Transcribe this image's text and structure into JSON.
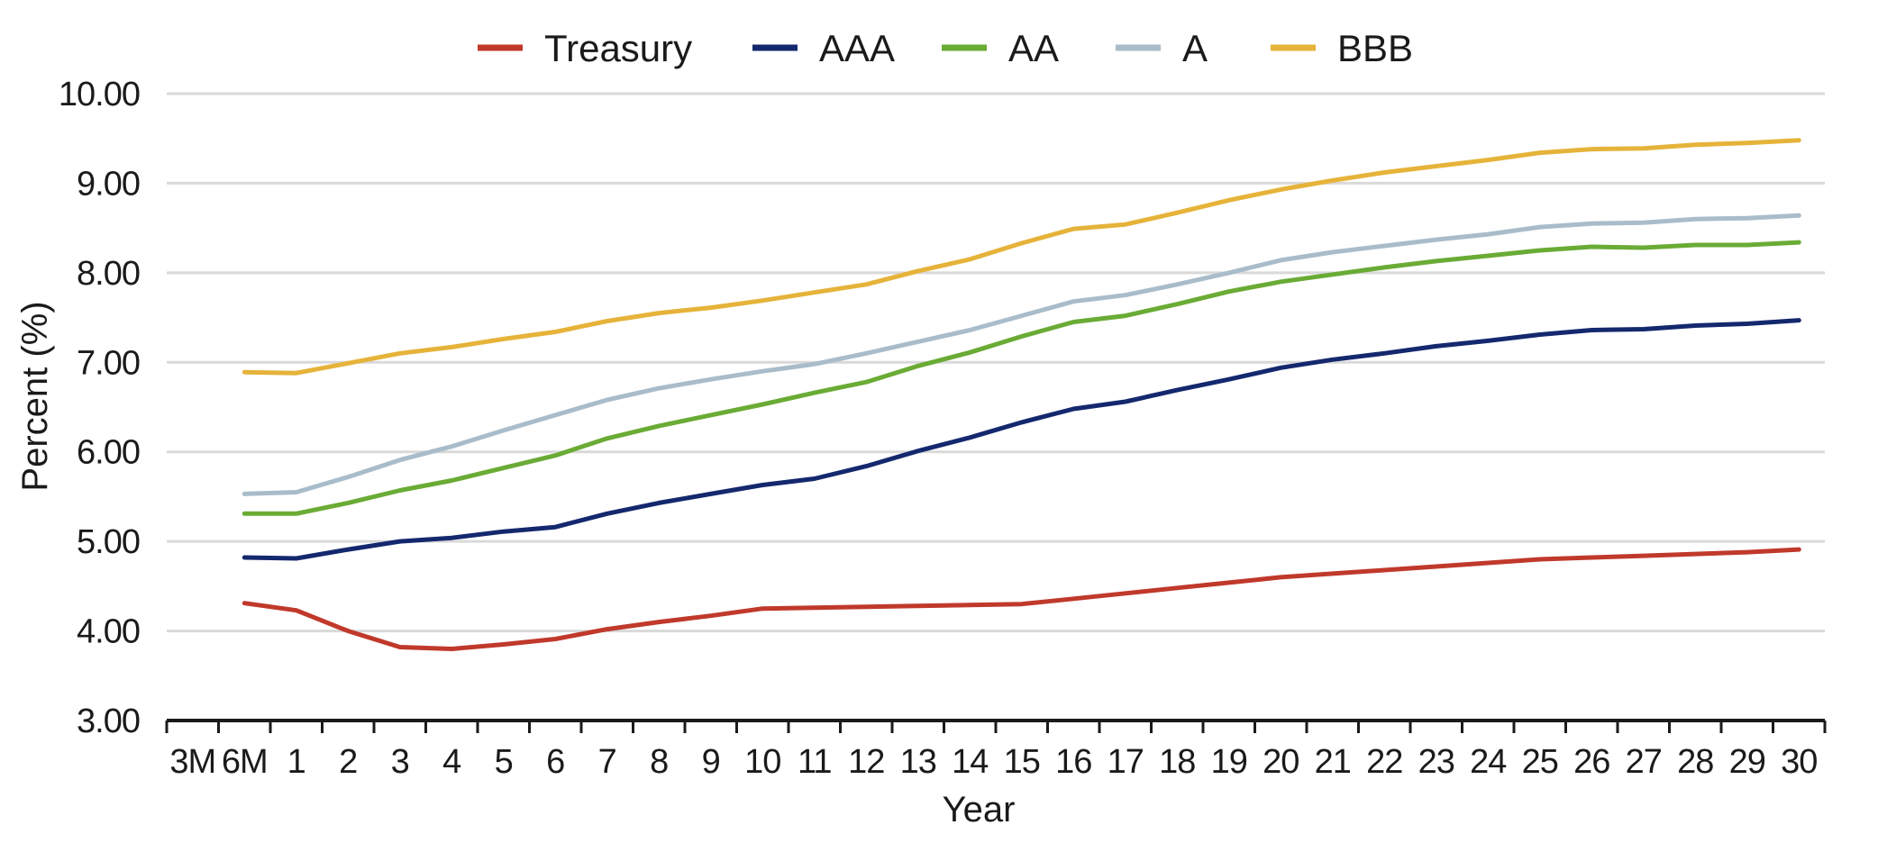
{
  "chart_data": {
    "type": "line",
    "title": "",
    "xlabel": "Year",
    "ylabel": "Percent (%)",
    "ylim": [
      3.0,
      10.0
    ],
    "yticks": [
      "3.00",
      "4.00",
      "5.00",
      "6.00",
      "7.00",
      "8.00",
      "9.00",
      "10.00"
    ],
    "grid": "horizontal",
    "legend_position": "top",
    "categories": [
      "3M",
      "6M",
      "1",
      "2",
      "3",
      "4",
      "5",
      "6",
      "7",
      "8",
      "9",
      "10",
      "11",
      "12",
      "13",
      "14",
      "15",
      "16",
      "17",
      "18",
      "19",
      "20",
      "21",
      "22",
      "23",
      "24",
      "25",
      "26",
      "27",
      "28",
      "29",
      "30"
    ],
    "x": [
      0.25,
      0.5,
      1,
      2,
      3,
      4,
      5,
      6,
      7,
      8,
      9,
      10,
      11,
      12,
      13,
      14,
      15,
      16,
      17,
      18,
      19,
      20,
      21,
      22,
      23,
      24,
      25,
      26,
      27,
      28,
      29,
      30
    ],
    "series": [
      {
        "name": "Treasury",
        "color": "#c0392b",
        "x": [
          0.0,
          1,
          2,
          3,
          4,
          5,
          6,
          7,
          8,
          9,
          10,
          11,
          12,
          13,
          14,
          15,
          16,
          17,
          18,
          19,
          20,
          21,
          22,
          23,
          24,
          25,
          26,
          27,
          28,
          29,
          30
        ],
        "values": [
          4.31,
          4.23,
          4.0,
          3.82,
          3.8,
          3.85,
          3.91,
          4.02,
          4.1,
          4.17,
          4.25,
          4.26,
          4.27,
          4.28,
          4.29,
          4.3,
          4.36,
          4.42,
          4.48,
          4.54,
          4.6,
          4.64,
          4.68,
          4.72,
          4.76,
          4.8,
          4.82,
          4.84,
          4.86,
          4.88,
          4.91
        ]
      },
      {
        "name": "AAA",
        "color": "#14286e",
        "x": [
          0.0,
          1,
          2,
          3,
          4,
          5,
          6,
          7,
          8,
          9,
          10,
          11,
          12,
          13,
          14,
          15,
          16,
          17,
          18,
          19,
          20,
          21,
          22,
          23,
          24,
          25,
          26,
          27,
          28,
          29,
          30
        ],
        "values": [
          4.82,
          4.81,
          4.91,
          5.0,
          5.04,
          5.11,
          5.16,
          5.31,
          5.43,
          5.53,
          5.63,
          5.7,
          5.84,
          6.01,
          6.16,
          6.33,
          6.48,
          6.56,
          6.69,
          6.81,
          6.94,
          7.03,
          7.1,
          7.18,
          7.24,
          7.31,
          7.36,
          7.37,
          7.41,
          7.43,
          7.47
        ]
      },
      {
        "name": "AA",
        "color": "#6aab35",
        "x": [
          0.0,
          1,
          2,
          3,
          4,
          5,
          6,
          7,
          8,
          9,
          10,
          11,
          12,
          13,
          14,
          15,
          16,
          17,
          18,
          19,
          20,
          21,
          22,
          23,
          24,
          25,
          26,
          27,
          28,
          29,
          30
        ],
        "values": [
          5.31,
          5.31,
          5.43,
          5.57,
          5.68,
          5.82,
          5.96,
          6.15,
          6.29,
          6.41,
          6.53,
          6.66,
          6.78,
          6.96,
          7.11,
          7.29,
          7.45,
          7.52,
          7.65,
          7.79,
          7.9,
          7.98,
          8.06,
          8.13,
          8.19,
          8.25,
          8.29,
          8.28,
          8.31,
          8.31,
          8.34
        ]
      },
      {
        "name": "A",
        "color": "#a9bcca",
        "x": [
          0.0,
          1,
          2,
          3,
          4,
          5,
          6,
          7,
          8,
          9,
          10,
          11,
          12,
          13,
          14,
          15,
          16,
          17,
          18,
          19,
          20,
          21,
          22,
          23,
          24,
          25,
          26,
          27,
          28,
          29,
          30
        ],
        "values": [
          5.53,
          5.55,
          5.72,
          5.91,
          6.06,
          6.24,
          6.41,
          6.58,
          6.71,
          6.81,
          6.9,
          6.98,
          7.1,
          7.23,
          7.36,
          7.52,
          7.68,
          7.75,
          7.87,
          8.0,
          8.14,
          8.23,
          8.3,
          8.37,
          8.43,
          8.51,
          8.55,
          8.56,
          8.6,
          8.61,
          8.64
        ]
      },
      {
        "name": "BBB",
        "color": "#e6b33a",
        "x": [
          0.0,
          1,
          2,
          3,
          4,
          5,
          6,
          7,
          8,
          9,
          10,
          11,
          12,
          13,
          14,
          15,
          16,
          17,
          18,
          19,
          20,
          21,
          22,
          23,
          24,
          25,
          26,
          27,
          28,
          29,
          30
        ],
        "values": [
          6.89,
          6.88,
          6.99,
          7.1,
          7.17,
          7.26,
          7.34,
          7.46,
          7.55,
          7.61,
          7.69,
          7.78,
          7.87,
          8.02,
          8.15,
          8.33,
          8.49,
          8.54,
          8.67,
          8.81,
          8.93,
          9.03,
          9.12,
          9.19,
          9.26,
          9.34,
          9.38,
          9.39,
          9.43,
          9.45,
          9.48
        ]
      }
    ]
  }
}
